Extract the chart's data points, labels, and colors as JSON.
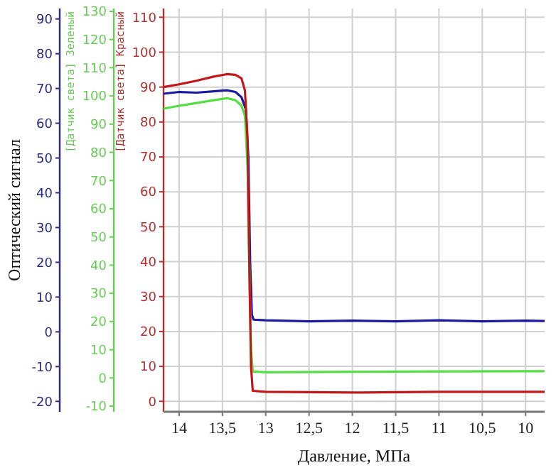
{
  "chart_data": {
    "type": "line",
    "xlabel": "Давление, МПа",
    "ylabel": "[Датчик света] Красный",
    "y2label": "[Датчик света] Зеленый",
    "y3label": "Оптический сигнал",
    "xlim": [
      14.18,
      9.78
    ],
    "xticks": [
      14,
      {
        "value": 13.5,
        "label": "13,5"
      },
      13,
      {
        "value": 12.5,
        "label": "12,5"
      },
      12,
      {
        "value": 11.5,
        "label": "11,5"
      },
      11,
      {
        "value": 10.5,
        "label": "10,5"
      },
      10
    ],
    "y3lim": [
      -23,
      93
    ],
    "y3ticks": [
      -20,
      -10,
      0,
      10,
      20,
      30,
      40,
      50,
      60,
      70,
      80,
      90
    ],
    "y2lim": [
      -12,
      131
    ],
    "y2ticks": [
      -10,
      0,
      10,
      20,
      30,
      40,
      50,
      60,
      70,
      80,
      90,
      100,
      110,
      120,
      130
    ],
    "ylim": [
      -3,
      112.5
    ],
    "yticks": [
      0,
      10,
      20,
      30,
      40,
      50,
      60,
      70,
      80,
      90,
      100,
      110
    ],
    "grid": true,
    "line_style": "solid",
    "marker": "none",
    "series": [
      {
        "color": "#1a1aa0",
        "axis": "y3",
        "x": [
          14.18,
          14.0,
          13.8,
          13.6,
          13.45,
          13.35,
          13.28,
          13.23,
          13.2,
          13.18,
          13.16,
          13.14,
          13.0,
          12.5,
          12.0,
          11.5,
          11.0,
          10.5,
          10.0,
          9.78
        ],
        "values": [
          68.5,
          69.0,
          68.8,
          69.2,
          69.5,
          69.0,
          67.5,
          64,
          50,
          20,
          5,
          3.5,
          3.3,
          3.0,
          3.2,
          3.0,
          3.3,
          3.0,
          3.2,
          3.1
        ]
      },
      {
        "color": "#55dd44",
        "axis": "y2",
        "x": [
          14.18,
          14.0,
          13.8,
          13.6,
          13.45,
          13.35,
          13.28,
          13.24,
          13.21,
          13.19,
          13.17,
          13.15,
          13.0,
          12.0,
          11.0,
          10.0,
          9.78
        ],
        "values": [
          95.5,
          96.5,
          97.5,
          98.5,
          99.2,
          98.5,
          96.5,
          93,
          75,
          40,
          10,
          2.3,
          2.0,
          2.2,
          2.3,
          2.4,
          2.4
        ]
      },
      {
        "color": "#c01818",
        "axis": "y",
        "x": [
          14.18,
          14.0,
          13.8,
          13.6,
          13.45,
          13.35,
          13.28,
          13.24,
          13.21,
          13.19,
          13.17,
          13.15,
          13.0,
          12.0,
          11.0,
          10.0,
          9.78
        ],
        "values": [
          90,
          90.8,
          91.8,
          93,
          93.7,
          93.5,
          92.5,
          89,
          75,
          40,
          10,
          3,
          2.7,
          2.5,
          2.7,
          2.7,
          2.7
        ]
      }
    ]
  }
}
